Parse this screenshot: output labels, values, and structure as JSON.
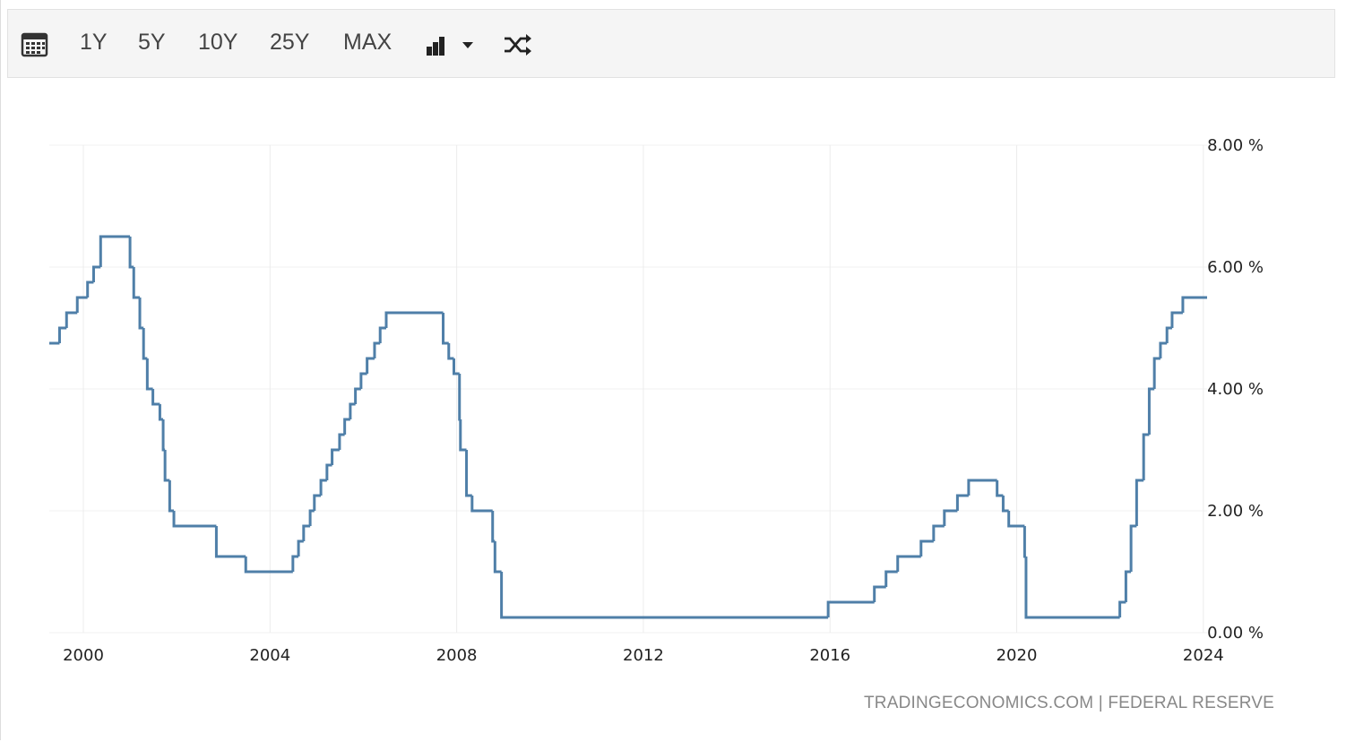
{
  "toolbar": [
    "1Y",
    "5Y",
    "10Y",
    "25Y",
    "MAX"
  ],
  "source": "TRADINGECONOMICS.COM | FEDERAL RESERVE",
  "chart_data": {
    "type": "step-line",
    "color": "#4f7fa8",
    "grid": true,
    "xlim": [
      1999.27,
      2024.08
    ],
    "xticks": [
      2000,
      2004,
      2008,
      2012,
      2016,
      2020,
      2024
    ],
    "ylim": [
      0,
      8
    ],
    "yticks": [
      {
        "value": 0,
        "label": "0.00 %"
      },
      {
        "value": 2,
        "label": "2.00 %"
      },
      {
        "value": 4,
        "label": "4.00 %"
      },
      {
        "value": 6,
        "label": "6.00 %"
      },
      {
        "value": 8,
        "label": "8.00 %"
      }
    ],
    "x": [
      1999.27,
      1999.49,
      1999.64,
      1999.87,
      2000.09,
      2000.22,
      2000.37,
      2001.0,
      2001.08,
      2001.21,
      2001.29,
      2001.37,
      2001.49,
      2001.64,
      2001.71,
      2001.75,
      2001.85,
      2001.94,
      2002.85,
      2003.48,
      2004.49,
      2004.61,
      2004.72,
      2004.86,
      2004.95,
      2005.09,
      2005.22,
      2005.33,
      2005.49,
      2005.6,
      2005.72,
      2005.83,
      2005.95,
      2006.08,
      2006.24,
      2006.36,
      2006.49,
      2007.71,
      2007.83,
      2007.94,
      2008.06,
      2008.08,
      2008.21,
      2008.33,
      2008.77,
      2008.82,
      2008.96,
      2015.96,
      2016.95,
      2017.2,
      2017.45,
      2017.95,
      2018.22,
      2018.45,
      2018.73,
      2018.97,
      2019.58,
      2019.71,
      2019.83,
      2020.17,
      2020.2,
      2022.21,
      2022.34,
      2022.45,
      2022.57,
      2022.72,
      2022.84,
      2022.95,
      2023.08,
      2023.22,
      2023.33,
      2023.56,
      2024.08
    ],
    "values": [
      4.75,
      5.0,
      5.25,
      5.5,
      5.75,
      6.0,
      6.5,
      6.0,
      5.5,
      5.0,
      4.5,
      4.0,
      3.75,
      3.5,
      3.0,
      2.5,
      2.0,
      1.75,
      1.25,
      1.0,
      1.25,
      1.5,
      1.75,
      2.0,
      2.25,
      2.5,
      2.75,
      3.0,
      3.25,
      3.5,
      3.75,
      4.0,
      4.25,
      4.5,
      4.75,
      5.0,
      5.25,
      4.75,
      4.5,
      4.25,
      3.5,
      3.0,
      2.25,
      2.0,
      1.5,
      1.0,
      0.25,
      0.5,
      0.75,
      1.0,
      1.25,
      1.5,
      1.75,
      2.0,
      2.25,
      2.5,
      2.25,
      2.0,
      1.75,
      1.25,
      0.25,
      0.5,
      1.0,
      1.75,
      2.5,
      3.25,
      4.0,
      4.5,
      4.75,
      5.0,
      5.25,
      5.5,
      5.5
    ]
  }
}
